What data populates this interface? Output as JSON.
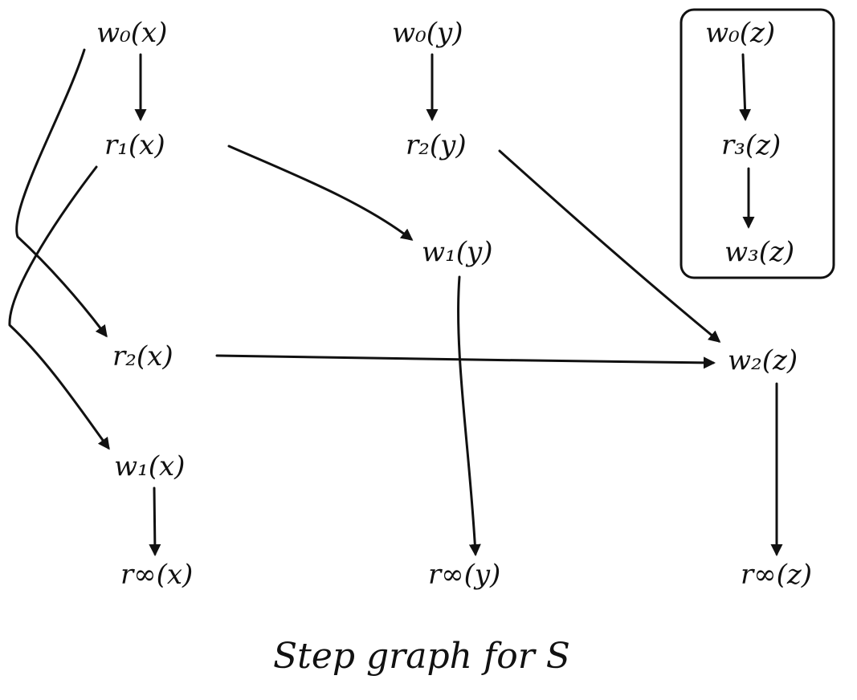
{
  "diagram": {
    "caption": "Step graph for S",
    "nodes": {
      "w0x": "w₀(x)",
      "w0y": "w₀(y)",
      "w0z": "w₀(z)",
      "r1x": "r₁(x)",
      "r2y": "r₂(y)",
      "r3z": "r₃(z)",
      "w1y": "w₁(y)",
      "w3z": "w₃(z)",
      "r2x": "r₂(x)",
      "w2z": "w₂(z)",
      "w1x": "w₁(x)",
      "rinfx": "r∞(x)",
      "rinfy": "r∞(y)",
      "rinfz": "r∞(z)"
    },
    "edges": [
      {
        "from": "w0x",
        "to": "r1x"
      },
      {
        "from": "w0x",
        "to": "r2x"
      },
      {
        "from": "r1x",
        "to": "w1x"
      },
      {
        "from": "r1x",
        "to": "w1y"
      },
      {
        "from": "w0y",
        "to": "r2y"
      },
      {
        "from": "r2y",
        "to": "w2z"
      },
      {
        "from": "w1y",
        "to": "rinfy"
      },
      {
        "from": "r2x",
        "to": "w2z"
      },
      {
        "from": "w1x",
        "to": "rinfx"
      },
      {
        "from": "w2z",
        "to": "rinfz"
      },
      {
        "from": "w0z",
        "to": "r3z"
      },
      {
        "from": "r3z",
        "to": "w3z"
      }
    ],
    "groups": [
      {
        "nodes": [
          "w0z",
          "r3z",
          "w3z"
        ]
      }
    ]
  }
}
